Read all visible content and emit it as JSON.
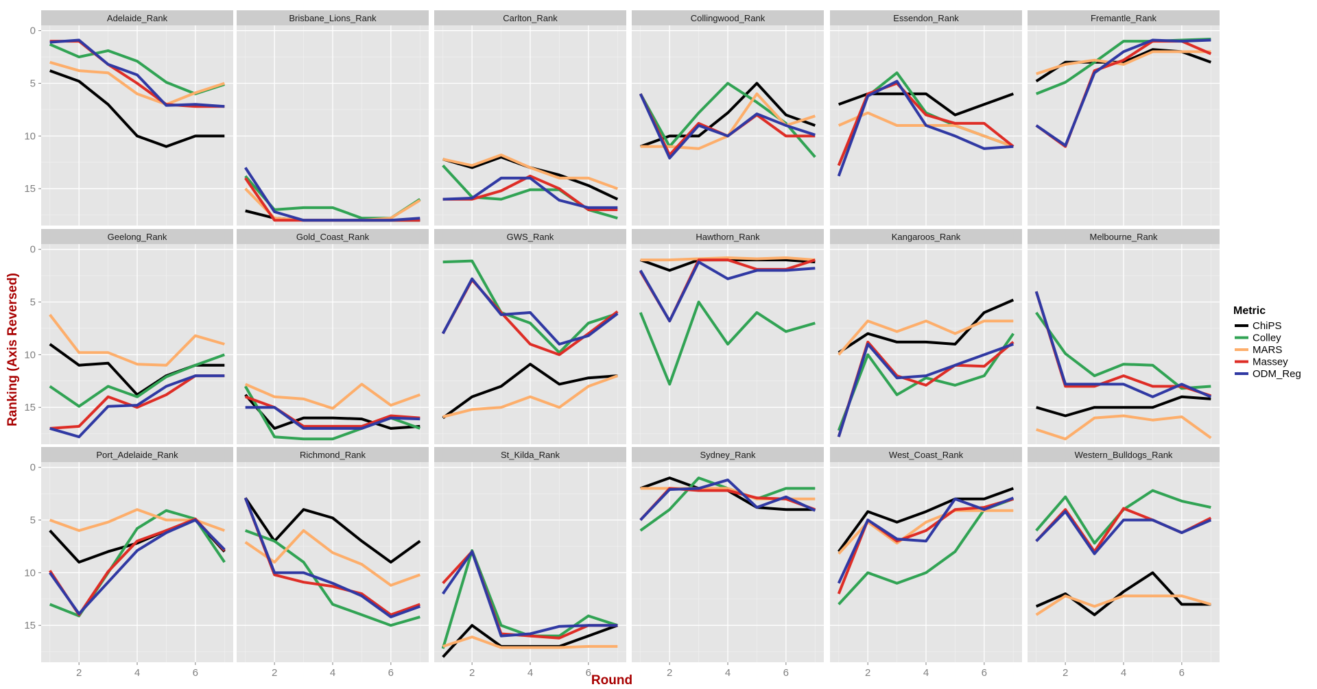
{
  "chart_data": {
    "type": "line",
    "layout": "facet-grid 3x6",
    "xlabel": "Round",
    "ylabel": "Ranking (Axis Reversed)",
    "x": [
      1,
      2,
      3,
      4,
      5,
      6,
      7
    ],
    "xticks": [
      2,
      4,
      6
    ],
    "yticks": [
      0,
      5,
      10,
      15
    ],
    "ylim": [
      18.5,
      -0.5
    ],
    "y_reversed": true,
    "grid": true,
    "legend": {
      "title": "Metric",
      "position": "right",
      "entries": [
        "ChiPS",
        "Colley",
        "MARS",
        "Massey",
        "ODM_Reg"
      ]
    },
    "colors": {
      "ChiPS": "#000000",
      "Colley": "#31a354",
      "MARS": "#fdae6b",
      "Massey": "#de2d26",
      "ODM_Reg": "#3039a3"
    },
    "panels": [
      {
        "title": "Adelaide_Rank",
        "series": {
          "ChiPS": [
            3.8,
            4.8,
            7,
            10,
            11,
            10,
            10
          ],
          "Colley": [
            1.3,
            2.5,
            1.9,
            2.9,
            4.9,
            6,
            5.1
          ],
          "MARS": [
            3,
            3.8,
            4,
            6,
            7,
            5.9,
            5
          ],
          "Massey": [
            1,
            1,
            3.2,
            5,
            7,
            7.2,
            7.2
          ],
          "ODM_Reg": [
            1.1,
            0.9,
            3.2,
            4.2,
            7.1,
            7,
            7.2
          ]
        }
      },
      {
        "title": "Brisbane_Lions_Rank",
        "series": {
          "ChiPS": [
            17.1,
            17.8,
            18,
            18,
            18,
            18,
            18
          ],
          "Colley": [
            13.8,
            17,
            16.8,
            16.8,
            17.8,
            17.8,
            16
          ],
          "MARS": [
            15,
            17.8,
            18,
            18,
            18,
            17.8,
            16.1
          ],
          "Massey": [
            14,
            18,
            18,
            18,
            18,
            18,
            18
          ],
          "ODM_Reg": [
            13,
            17.2,
            18,
            18,
            18,
            18,
            17.8
          ]
        }
      },
      {
        "title": "Carlton_Rank",
        "series": {
          "ChiPS": [
            12.2,
            13,
            12,
            13,
            13.7,
            14.7,
            16
          ],
          "Colley": [
            12.8,
            15.8,
            16,
            15.1,
            15.1,
            17,
            17.8
          ],
          "MARS": [
            12.2,
            12.8,
            11.8,
            13,
            14,
            14,
            15
          ],
          "Massey": [
            16,
            16,
            15.2,
            13.8,
            15,
            17,
            17
          ],
          "ODM_Reg": [
            16,
            15.9,
            14,
            14,
            16.1,
            16.8,
            16.8
          ]
        }
      },
      {
        "title": "Collingwood_Rank",
        "series": {
          "ChiPS": [
            11,
            10,
            10,
            7.8,
            5,
            8,
            9
          ],
          "Colley": [
            6,
            11,
            7.8,
            5,
            6.8,
            8.8,
            12
          ],
          "MARS": [
            11,
            11,
            11.2,
            10,
            6,
            9,
            8.1
          ],
          "Massey": [
            6,
            11.8,
            8.8,
            10,
            8,
            10,
            10
          ],
          "ODM_Reg": [
            6,
            12.1,
            9,
            10,
            7.9,
            9,
            9.9
          ]
        }
      },
      {
        "title": "Essendon_Rank",
        "series": {
          "ChiPS": [
            7,
            6,
            6,
            6,
            8,
            7,
            6
          ],
          "Colley": [
            12.8,
            6.2,
            4,
            7.8,
            9,
            10,
            11
          ],
          "MARS": [
            9,
            7.8,
            9,
            9,
            9,
            10,
            11
          ],
          "Massey": [
            12.8,
            6,
            5,
            8,
            8.8,
            8.8,
            11
          ],
          "ODM_Reg": [
            13.8,
            6.2,
            4.8,
            9,
            10,
            11.2,
            11
          ]
        }
      },
      {
        "title": "Fremantle_Rank",
        "series": {
          "ChiPS": [
            4.8,
            3,
            3,
            3,
            1.8,
            2,
            3
          ],
          "Colley": [
            6,
            4.9,
            3,
            1,
            1,
            0.9,
            0.8
          ],
          "MARS": [
            4.1,
            3.2,
            2.8,
            3.2,
            2,
            2,
            2
          ],
          "Massey": [
            9,
            11,
            3.8,
            2.8,
            1,
            1,
            2.2
          ],
          "ODM_Reg": [
            9,
            10.9,
            4,
            2,
            0.9,
            1,
            0.9
          ]
        }
      },
      {
        "title": "Geelong_Rank",
        "series": {
          "ChiPS": [
            9,
            11,
            10.8,
            13.8,
            12,
            11,
            11
          ],
          "Colley": [
            13,
            14.9,
            13,
            14,
            12.1,
            11,
            10
          ],
          "MARS": [
            6.2,
            9.8,
            9.8,
            10.9,
            11,
            8.2,
            9
          ],
          "Massey": [
            17,
            16.8,
            14,
            15,
            13.8,
            12,
            12
          ],
          "ODM_Reg": [
            17,
            17.8,
            14.9,
            14.8,
            13,
            12,
            12
          ]
        }
      },
      {
        "title": "Gold_Coast_Rank",
        "series": {
          "ChiPS": [
            13.8,
            17,
            16,
            16,
            16.1,
            17,
            16.8
          ],
          "Colley": [
            13,
            17.8,
            18,
            18,
            17,
            16,
            17
          ],
          "MARS": [
            12.8,
            14,
            14.2,
            15.1,
            12.8,
            14.8,
            13.8
          ],
          "Massey": [
            14,
            15,
            16.8,
            16.8,
            16.8,
            15.8,
            16
          ],
          "ODM_Reg": [
            15,
            15,
            17,
            17,
            17,
            16,
            16.1
          ]
        }
      },
      {
        "title": "GWS_Rank",
        "series": {
          "ChiPS": [
            16,
            14,
            13,
            10.9,
            12.8,
            12.2,
            12
          ],
          "Colley": [
            1.2,
            1.1,
            6,
            7,
            9.8,
            7,
            6.1
          ],
          "MARS": [
            15.9,
            15.2,
            15,
            14,
            15,
            13,
            12
          ],
          "Massey": [
            8,
            2.9,
            6,
            9,
            10,
            8,
            5.9
          ],
          "ODM_Reg": [
            8,
            2.8,
            6.2,
            6,
            9,
            8.2,
            6.1
          ]
        }
      },
      {
        "title": "Hawthorn_Rank",
        "series": {
          "ChiPS": [
            1,
            2,
            1,
            1,
            1,
            1,
            1.2
          ],
          "Colley": [
            6,
            12.8,
            5,
            9,
            6,
            7.8,
            7
          ],
          "MARS": [
            1,
            1,
            0.9,
            0.8,
            0.9,
            0.8,
            1
          ],
          "Massey": [
            2.1,
            6.8,
            1,
            1,
            1.9,
            1.9,
            1
          ],
          "ODM_Reg": [
            2,
            6.8,
            1.2,
            2.8,
            2,
            2,
            1.8
          ]
        }
      },
      {
        "title": "Kangaroos_Rank",
        "series": {
          "ChiPS": [
            9.8,
            8,
            8.8,
            8.8,
            9,
            6,
            4.8
          ],
          "Colley": [
            17.2,
            10,
            13.8,
            12.2,
            12.9,
            12,
            8
          ],
          "MARS": [
            10,
            6.8,
            7.8,
            6.8,
            8,
            6.8,
            6.8
          ],
          "Massey": [
            17.8,
            8.8,
            12,
            12.9,
            11,
            11.1,
            8.8
          ],
          "ODM_Reg": [
            17.8,
            9,
            12.2,
            12,
            11,
            10,
            9
          ]
        }
      },
      {
        "title": "Melbourne_Rank",
        "series": {
          "ChiPS": [
            15,
            15.8,
            15,
            15,
            15,
            14,
            14.2
          ],
          "Colley": [
            6,
            9.9,
            12,
            10.9,
            11,
            13.2,
            13
          ],
          "MARS": [
            17.1,
            18,
            16,
            15.8,
            16.2,
            15.9,
            17.9
          ],
          "Massey": [
            4,
            13,
            13,
            12,
            13,
            13,
            13.9
          ],
          "ODM_Reg": [
            4,
            12.8,
            12.8,
            12.8,
            14,
            12.8,
            14
          ]
        }
      },
      {
        "title": "Port_Adelaide_Rank",
        "series": {
          "ChiPS": [
            6,
            9,
            8,
            7.2,
            6,
            5,
            8
          ],
          "Colley": [
            13,
            14.1,
            10,
            5.8,
            4.1,
            4.9,
            9
          ],
          "MARS": [
            5,
            6,
            5.2,
            4,
            5,
            5,
            6
          ],
          "Massey": [
            9.8,
            14,
            9.9,
            7,
            6,
            4.9,
            7.9
          ],
          "ODM_Reg": [
            10,
            13.9,
            10.9,
            7.9,
            6.2,
            5,
            7.8
          ]
        }
      },
      {
        "title": "Richmond_Rank",
        "series": {
          "ChiPS": [
            2.9,
            7,
            4,
            4.8,
            7,
            9,
            7
          ],
          "Colley": [
            6,
            7,
            9,
            13,
            14,
            15,
            14.2
          ],
          "MARS": [
            7.1,
            9,
            6,
            8.1,
            9.2,
            11.2,
            10.2
          ],
          "Massey": [
            2.9,
            10.2,
            10.9,
            11.3,
            12,
            14,
            13
          ],
          "ODM_Reg": [
            2.9,
            10,
            10,
            11,
            12.2,
            14.2,
            13.2
          ]
        }
      },
      {
        "title": "St_Kilda_Rank",
        "series": {
          "ChiPS": [
            18,
            15,
            17,
            17,
            17,
            16,
            15
          ],
          "Colley": [
            17.2,
            7.9,
            15,
            16,
            16,
            14.1,
            15
          ],
          "MARS": [
            17,
            16.1,
            17.1,
            17.1,
            17.1,
            17,
            17
          ],
          "Massey": [
            11,
            8,
            15.8,
            16,
            16.2,
            15,
            15
          ],
          "ODM_Reg": [
            12,
            8,
            16,
            15.8,
            15.1,
            15,
            15
          ]
        }
      },
      {
        "title": "Sydney_Rank",
        "series": {
          "ChiPS": [
            2,
            1,
            2,
            2.2,
            3.8,
            4,
            4
          ],
          "Colley": [
            6,
            4,
            1,
            2,
            3,
            2,
            2
          ],
          "MARS": [
            2,
            2,
            2,
            2,
            3,
            3,
            3
          ],
          "Massey": [
            5,
            2,
            2.2,
            2.2,
            2.9,
            3,
            4
          ],
          "ODM_Reg": [
            5,
            2.1,
            2,
            1.2,
            3.8,
            2.8,
            4.1
          ]
        }
      },
      {
        "title": "West_Coast_Rank",
        "series": {
          "ChiPS": [
            8,
            4.2,
            5.2,
            4.2,
            3,
            3,
            2
          ],
          "Colley": [
            13,
            10,
            11,
            10,
            8,
            4,
            3
          ],
          "MARS": [
            8.2,
            5.2,
            7.2,
            5.2,
            4.1,
            4.1,
            4.1
          ],
          "Massey": [
            12,
            5,
            7,
            6,
            4,
            3.8,
            3
          ],
          "ODM_Reg": [
            11,
            5,
            6.8,
            7,
            3,
            4,
            2.9
          ]
        }
      },
      {
        "title": "Western_Bulldogs_Rank",
        "series": {
          "ChiPS": [
            13.2,
            12,
            14,
            11.8,
            10,
            13,
            13
          ],
          "Colley": [
            6,
            2.8,
            7.2,
            4,
            2.2,
            3.2,
            3.8
          ],
          "MARS": [
            14,
            12.2,
            13.2,
            12.2,
            12.2,
            12.2,
            13
          ],
          "Massey": [
            7,
            4,
            8,
            3.9,
            5,
            6.2,
            4.8
          ],
          "ODM_Reg": [
            7,
            4.2,
            8.2,
            5,
            5,
            6.2,
            5
          ]
        }
      }
    ]
  }
}
